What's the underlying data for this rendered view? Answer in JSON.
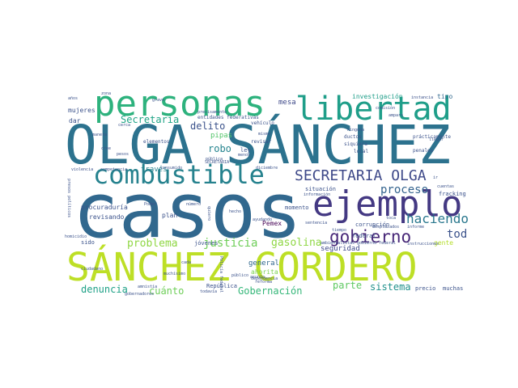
{
  "wordcloud": {
    "words": [
      {
        "text": "casos",
        "color": "#31688e"
      },
      {
        "text": "OLGA SÁNCHEZ",
        "color": "#2c728e"
      },
      {
        "text": "SÁNCHEZ CORDERO",
        "color": "#bddf26"
      },
      {
        "text": "personas",
        "color": "#2db27d"
      },
      {
        "text": "ejemplo",
        "color": "#443983"
      },
      {
        "text": "libertad",
        "color": "#1f9e89"
      },
      {
        "text": "combustible",
        "color": "#26828e"
      },
      {
        "text": "SECRETARIA OLGA",
        "color": "#3e4989"
      },
      {
        "text": "gobierno",
        "color": "#482878"
      },
      {
        "text": "justicia",
        "color": "#6ece58"
      },
      {
        "text": "haciendo",
        "color": "#2a788e"
      },
      {
        "text": "proceso",
        "color": "#33638d"
      },
      {
        "text": "toda",
        "color": "#3b528b"
      },
      {
        "text": "gasolina",
        "color": "#8fd744"
      },
      {
        "text": "problema",
        "color": "#8fd744"
      },
      {
        "text": "Secretaría",
        "color": "#20a486"
      },
      {
        "text": "delito",
        "color": "#3b528b"
      },
      {
        "text": "robo",
        "color": "#25848e"
      },
      {
        "text": "denuncia",
        "color": "#1fa187"
      },
      {
        "text": "cuánto",
        "color": "#6ece58"
      },
      {
        "text": "Gobernación",
        "color": "#35b779"
      },
      {
        "text": "parte",
        "color": "#5ec962"
      },
      {
        "text": "sistema",
        "color": "#21918c"
      },
      {
        "text": "pipas",
        "color": "#52c569"
      },
      {
        "text": "través",
        "color": "#26828e"
      },
      {
        "text": "seguridad",
        "color": "#3e4989"
      },
      {
        "text": "general",
        "color": "#31688e"
      },
      {
        "text": "Pemex",
        "color": "#440154"
      },
      {
        "text": "mesa",
        "color": "#3e4989"
      },
      {
        "text": "investigación",
        "color": "#1f9e89"
      },
      {
        "text": "tipo",
        "color": "#31688e"
      },
      {
        "text": "mujeres",
        "color": "#3b528b"
      },
      {
        "text": "dar",
        "color": "#3b528b"
      },
      {
        "text": "procuraduría",
        "color": "#3b528b"
      },
      {
        "text": "revisando",
        "color": "#3b528b"
      },
      {
        "text": "plan",
        "color": "#3b528b"
      },
      {
        "text": "gente",
        "color": "#b5de2b"
      },
      {
        "text": "situación",
        "color": "#3b528b"
      },
      {
        "text": "corrupción",
        "color": "#3b528b"
      },
      {
        "text": "momento",
        "color": "#3b528b"
      },
      {
        "text": "ahorita",
        "color": "#7ad151"
      },
      {
        "text": "muchas",
        "color": "#3b528b"
      },
      {
        "text": "precio",
        "color": "#3b528b"
      },
      {
        "text": "sido",
        "color": "#3b528b"
      },
      {
        "text": "jóvenes",
        "color": "#3b528b"
      },
      {
        "text": "República",
        "color": "#3b528b"
      },
      {
        "text": "ley",
        "color": "#3b528b"
      },
      {
        "text": "fracking",
        "color": "#3b528b"
      },
      {
        "text": "federal",
        "color": "#3b528b"
      },
      {
        "text": "entidades federativas",
        "color": "#3b528b"
      },
      {
        "text": "vehículo",
        "color": "#3b528b"
      },
      {
        "text": "revisar",
        "color": "#3b528b"
      },
      {
        "text": "ductos",
        "color": "#3b528b"
      },
      {
        "text": "siquiera",
        "color": "#3b528b"
      },
      {
        "text": "local",
        "color": "#3b528b"
      },
      {
        "text": "penales",
        "color": "#3b528b"
      },
      {
        "text": "prácticamente",
        "color": "#3b528b"
      },
      {
        "text": "instancia",
        "color": "#3b528b"
      },
      {
        "text": "elementos",
        "color": "#3b528b"
      },
      {
        "text": "consumido",
        "color": "#3b528b"
      },
      {
        "text": "SECRETARIA",
        "color": "#3b528b"
      },
      {
        "text": "diciembre",
        "color": "#3b528b"
      },
      {
        "text": "cerca",
        "color": "#3b528b"
      },
      {
        "text": "años",
        "color": "#3b528b"
      },
      {
        "text": "grave",
        "color": "#3b528b"
      },
      {
        "text": "manera",
        "color": "#3b528b"
      },
      {
        "text": "pesos",
        "color": "#3b528b"
      },
      {
        "text": "cree",
        "color": "#3b528b"
      },
      {
        "text": "menos",
        "color": "#3b528b"
      },
      {
        "text": "violencia",
        "color": "#3b528b"
      },
      {
        "text": "competencia",
        "color": "#3b528b"
      },
      {
        "text": "información",
        "color": "#3b528b"
      },
      {
        "text": "Poder",
        "color": "#3b528b"
      },
      {
        "text": "hecho",
        "color": "#3b528b"
      },
      {
        "text": "ayudando",
        "color": "#3b528b"
      },
      {
        "text": "sentencia",
        "color": "#3b528b"
      },
      {
        "text": "tiempo",
        "color": "#3b528b"
      },
      {
        "text": "desplazados",
        "color": "#3b528b"
      },
      {
        "text": "informe",
        "color": "#3b528b"
      },
      {
        "text": "asunto",
        "color": "#3b528b"
      },
      {
        "text": "reforma",
        "color": "#3b528b"
      },
      {
        "text": "público",
        "color": "#3b528b"
      },
      {
        "text": "muchísimo",
        "color": "#3b528b"
      },
      {
        "text": "todavía",
        "color": "#3b528b"
      },
      {
        "text": "amnistía",
        "color": "#3b528b"
      },
      {
        "text": "Policía federal",
        "color": "#3b528b"
      },
      {
        "text": "gobernadores",
        "color": "#3b528b"
      },
      {
        "text": "cada",
        "color": "#3b528b"
      },
      {
        "text": "ciudadano",
        "color": "#3b528b"
      },
      {
        "text": "homicidio",
        "color": "#3b528b"
      },
      {
        "text": "presos políticos",
        "color": "#3b528b"
      },
      {
        "text": "dependencia",
        "color": "#3b528b"
      },
      {
        "text": "ambientalistas",
        "color": "#3b528b"
      },
      {
        "text": "gobierno federal",
        "color": "#3b528b"
      },
      {
        "text": "instrucciones",
        "color": "#3b528b"
      },
      {
        "text": "cuentas",
        "color": "#3b528b"
      },
      {
        "text": "ninguna",
        "color": "#3b528b"
      },
      {
        "text": "comisión",
        "color": "#3b528b"
      },
      {
        "text": "mismo",
        "color": "#3b528b"
      },
      {
        "text": "toca",
        "color": "#3b528b"
      },
      {
        "text": "zona",
        "color": "#3b528b"
      },
      {
        "text": "ir",
        "color": "#3b528b"
      },
      {
        "text": "llegar",
        "color": "#3b528b"
      },
      {
        "text": "pública",
        "color": "#3b528b"
      },
      {
        "text": "precisamente",
        "color": "#3b528b"
      },
      {
        "text": "número",
        "color": "#3b528b"
      },
      {
        "text": "quiero",
        "color": "#3b528b"
      },
      {
        "text": "amparo",
        "color": "#3b528b"
      }
    ]
  }
}
